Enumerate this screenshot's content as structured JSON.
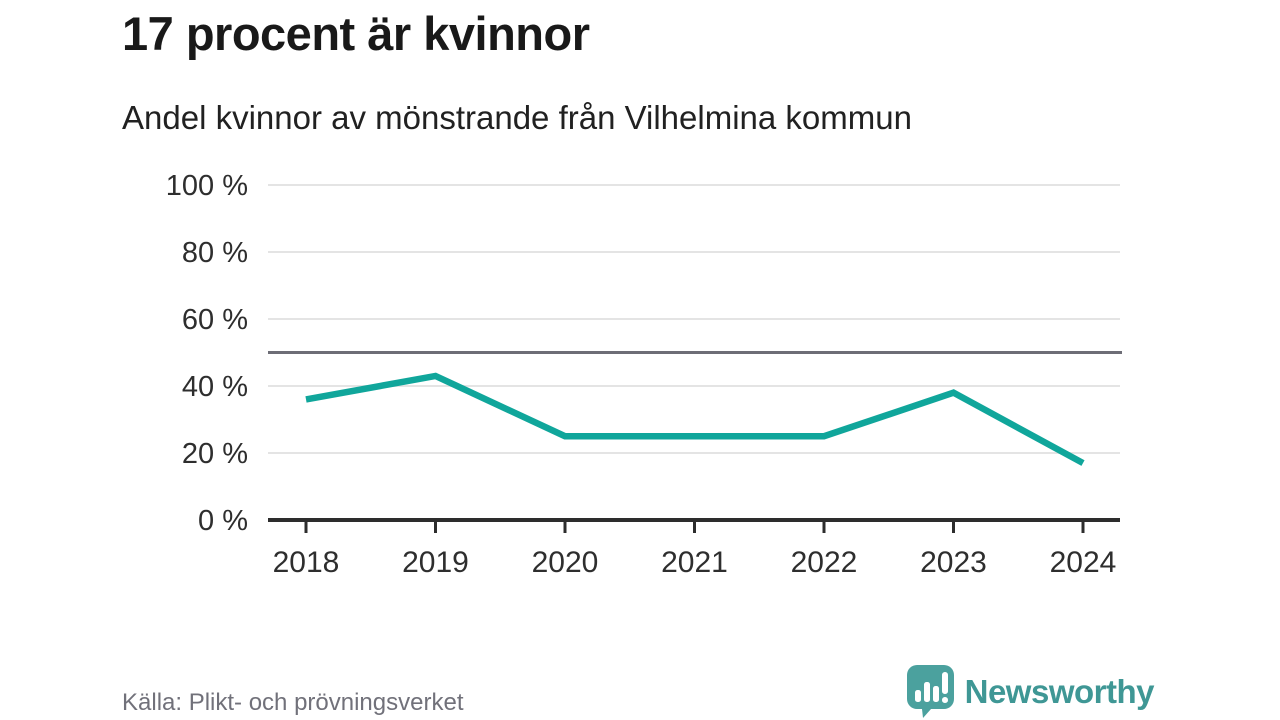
{
  "header": {
    "title": "17 procent är kvinnor",
    "subtitle": "Andel kvinnor av mönstrande från Vilhelmina kommun"
  },
  "chart_data": {
    "type": "line",
    "title": "17 procent är kvinnor",
    "subtitle": "Andel kvinnor av mönstrande från Vilhelmina kommun",
    "x": [
      "2018",
      "2019",
      "2020",
      "2021",
      "2022",
      "2023",
      "2024"
    ],
    "values": [
      36,
      43,
      25,
      25,
      25,
      38,
      17
    ],
    "xlabel": "",
    "ylabel": "",
    "ylim": [
      0,
      100
    ],
    "yticks": [
      0,
      20,
      40,
      60,
      80,
      100
    ],
    "ytick_labels": [
      "0 %",
      "20 %",
      "40 %",
      "60 %",
      "80 %",
      "100 %"
    ],
    "reference_line": 50,
    "grid": true,
    "legend_position": "none",
    "line_color": "#10a69b",
    "reference_line_color": "#6d6d76",
    "grid_color": "#e4e4e4",
    "axis_color": "#2d2d2d",
    "tick_label_color": "#2e2e2e"
  },
  "footer": {
    "source": "Källa: Plikt- och prövningsverket",
    "logo_text": "Newsworthy",
    "logo_icon": "chart-speech-bubble-icon",
    "logo_color": "#4ba19e",
    "logo_text_color": "#3f9795"
  }
}
